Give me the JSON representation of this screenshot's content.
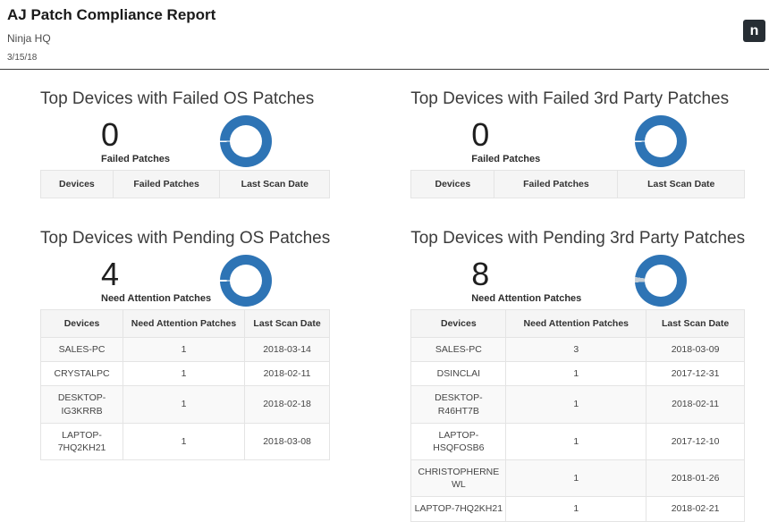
{
  "header": {
    "title": "AJ Patch Compliance Report",
    "org": "Ninja HQ",
    "date": "3/15/18",
    "logo_letter": "n"
  },
  "colors": {
    "accent_blue": "#2e74b5",
    "donut_gap_gray": "#c3cdd5",
    "logo_bg": "#272e34"
  },
  "sections": [
    {
      "title": "Top Devices with Failed OS Patches",
      "stat_value": "0",
      "stat_label": "Failed Patches",
      "columns": [
        "Devices",
        "Failed Patches",
        "Last Scan Date"
      ],
      "rows": []
    },
    {
      "title": "Top Devices with Failed 3rd Party Patches",
      "stat_value": "0",
      "stat_label": "Failed Patches",
      "columns": [
        "Devices",
        "Failed Patches",
        "Last Scan Date"
      ],
      "rows": []
    },
    {
      "title": "Top Devices with Pending OS Patches",
      "stat_value": "4",
      "stat_label": "Need Attention Patches",
      "columns": [
        "Devices",
        "Need Attention Patches",
        "Last Scan Date"
      ],
      "rows": [
        [
          "SALES-PC",
          "1",
          "2018-03-14"
        ],
        [
          "CRYSTALPC",
          "1",
          "2018-02-11"
        ],
        [
          "DESKTOP-IG3KRRB",
          "1",
          "2018-02-18"
        ],
        [
          "LAPTOP-7HQ2KH21",
          "1",
          "2018-03-08"
        ]
      ]
    },
    {
      "title": "Top Devices with Pending 3rd Party Patches",
      "stat_value": "8",
      "stat_label": "Need Attention Patches",
      "columns": [
        "Devices",
        "Need Attention Patches",
        "Last Scan Date"
      ],
      "rows": [
        [
          "SALES-PC",
          "3",
          "2018-03-09"
        ],
        [
          "DSINCLAI",
          "1",
          "2017-12-31"
        ],
        [
          "DESKTOP-R46HT7B",
          "1",
          "2018-02-11"
        ],
        [
          "LAPTOP-HSQFOSB6",
          "1",
          "2017-12-10"
        ],
        [
          "CHRISTOPHERNE WL",
          "1",
          "2018-01-26"
        ],
        [
          "LAPTOP-7HQ2KH21",
          "1",
          "2018-02-21"
        ]
      ]
    }
  ],
  "chart_data": [
    {
      "type": "pie",
      "title": "Top Devices with Failed OS Patches",
      "center_value": 0,
      "center_label": "Failed Patches",
      "legend": "none",
      "slices": [
        {
          "name": "ring",
          "color": "#2e74b5",
          "angle": 268
        },
        {
          "name": "gap",
          "color": "#ffffff",
          "angle": 3
        },
        {
          "name": "ring",
          "color": "#2e74b5",
          "angle": 89
        }
      ]
    },
    {
      "type": "pie",
      "title": "Top Devices with Failed 3rd Party Patches",
      "center_value": 0,
      "center_label": "Failed Patches",
      "legend": "none",
      "slices": [
        {
          "name": "ring",
          "color": "#2e74b5",
          "angle": 268
        },
        {
          "name": "gap",
          "color": "#ffffff",
          "angle": 3
        },
        {
          "name": "ring",
          "color": "#2e74b5",
          "angle": 89
        }
      ]
    },
    {
      "type": "pie",
      "title": "Top Devices with Pending OS Patches",
      "center_value": 4,
      "center_label": "Need Attention Patches",
      "legend": "none",
      "slices": [
        {
          "name": "ring",
          "color": "#2e74b5",
          "angle": 268
        },
        {
          "name": "gap",
          "color": "#ffffff",
          "angle": 4
        },
        {
          "name": "ring",
          "color": "#2e74b5",
          "angle": 88
        }
      ]
    },
    {
      "type": "pie",
      "title": "Top Devices with Pending 3rd Party Patches",
      "center_value": 8,
      "center_label": "Need Attention Patches",
      "legend": "none",
      "slices": [
        {
          "name": "ring",
          "color": "#2e74b5",
          "angle": 266
        },
        {
          "name": "minor-segment",
          "color": "#c3cdd5",
          "angle": 12
        },
        {
          "name": "ring",
          "color": "#2e74b5",
          "angle": 82
        }
      ]
    }
  ]
}
